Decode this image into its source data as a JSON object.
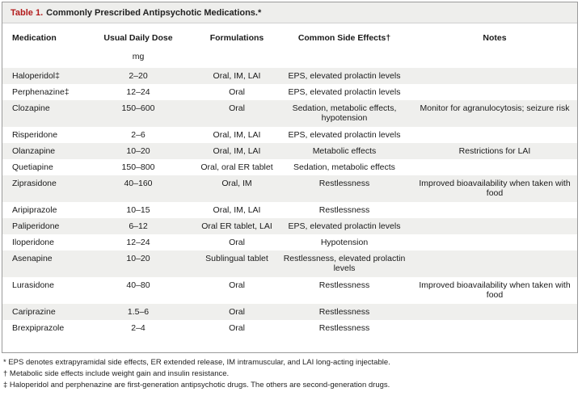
{
  "table": {
    "label": "Table 1.",
    "title": "Commonly Prescribed Antipsychotic Medications.*",
    "headers": {
      "medication": "Medication",
      "dose": "Usual Daily Dose",
      "formulations": "Formulations",
      "side_effects": "Common Side Effects†",
      "notes": "Notes"
    },
    "dose_unit": "mg",
    "rows": [
      {
        "medication": "Haloperidol‡",
        "dose": "2–20",
        "formulations": "Oral, IM, LAI",
        "side_effects": "EPS, elevated prolactin levels",
        "notes": ""
      },
      {
        "medication": "Perphenazine‡",
        "dose": "12–24",
        "formulations": "Oral",
        "side_effects": "EPS, elevated prolactin levels",
        "notes": ""
      },
      {
        "medication": "Clozapine",
        "dose": "150–600",
        "formulations": "Oral",
        "side_effects": "Sedation, metabolic effects, hypotension",
        "notes": "Monitor for agranulocytosis; seizure risk"
      },
      {
        "medication": "Risperidone",
        "dose": "2–6",
        "formulations": "Oral, IM, LAI",
        "side_effects": "EPS, elevated prolactin levels",
        "notes": ""
      },
      {
        "medication": "Olanzapine",
        "dose": "10–20",
        "formulations": "Oral, IM, LAI",
        "side_effects": "Metabolic effects",
        "notes": "Restrictions for LAI"
      },
      {
        "medication": "Quetiapine",
        "dose": "150–800",
        "formulations": "Oral, oral ER tablet",
        "side_effects": "Sedation, metabolic effects",
        "notes": ""
      },
      {
        "medication": "Ziprasidone",
        "dose": "40–160",
        "formulations": "Oral, IM",
        "side_effects": "Restlessness",
        "notes": "Improved bioavailability when taken with food"
      },
      {
        "medication": "Aripiprazole",
        "dose": "10–15",
        "formulations": "Oral, IM, LAI",
        "side_effects": "Restlessness",
        "notes": ""
      },
      {
        "medication": "Paliperidone",
        "dose": "6–12",
        "formulations": "Oral ER tablet, LAI",
        "side_effects": "EPS, elevated prolactin levels",
        "notes": ""
      },
      {
        "medication": "Iloperidone",
        "dose": "12–24",
        "formulations": "Oral",
        "side_effects": "Hypotension",
        "notes": ""
      },
      {
        "medication": "Asenapine",
        "dose": "10–20",
        "formulations": "Sublingual tablet",
        "side_effects": "Restlessness, elevated prolactin levels",
        "notes": ""
      },
      {
        "medication": "Lurasidone",
        "dose": "40–80",
        "formulations": "Oral",
        "side_effects": "Restlessness",
        "notes": "Improved bioavailability when taken with food"
      },
      {
        "medication": "Cariprazine",
        "dose": "1.5–6",
        "formulations": "Oral",
        "side_effects": "Restlessness",
        "notes": ""
      },
      {
        "medication": "Brexpiprazole",
        "dose": "2–4",
        "formulations": "Oral",
        "side_effects": "Restlessness",
        "notes": ""
      }
    ]
  },
  "footnotes": [
    "* EPS denotes extrapyramidal side effects, ER extended release, IM intramuscular, and LAI long-acting injectable.",
    "† Metabolic side effects include weight gain and insulin resistance.",
    "‡ Haloperidol and perphenazine are first-generation antipsychotic drugs. The others are second-generation drugs."
  ],
  "colors": {
    "title_label": "#b31b1b",
    "stripe": "#efefed",
    "title_bar": "#eeeeec"
  }
}
